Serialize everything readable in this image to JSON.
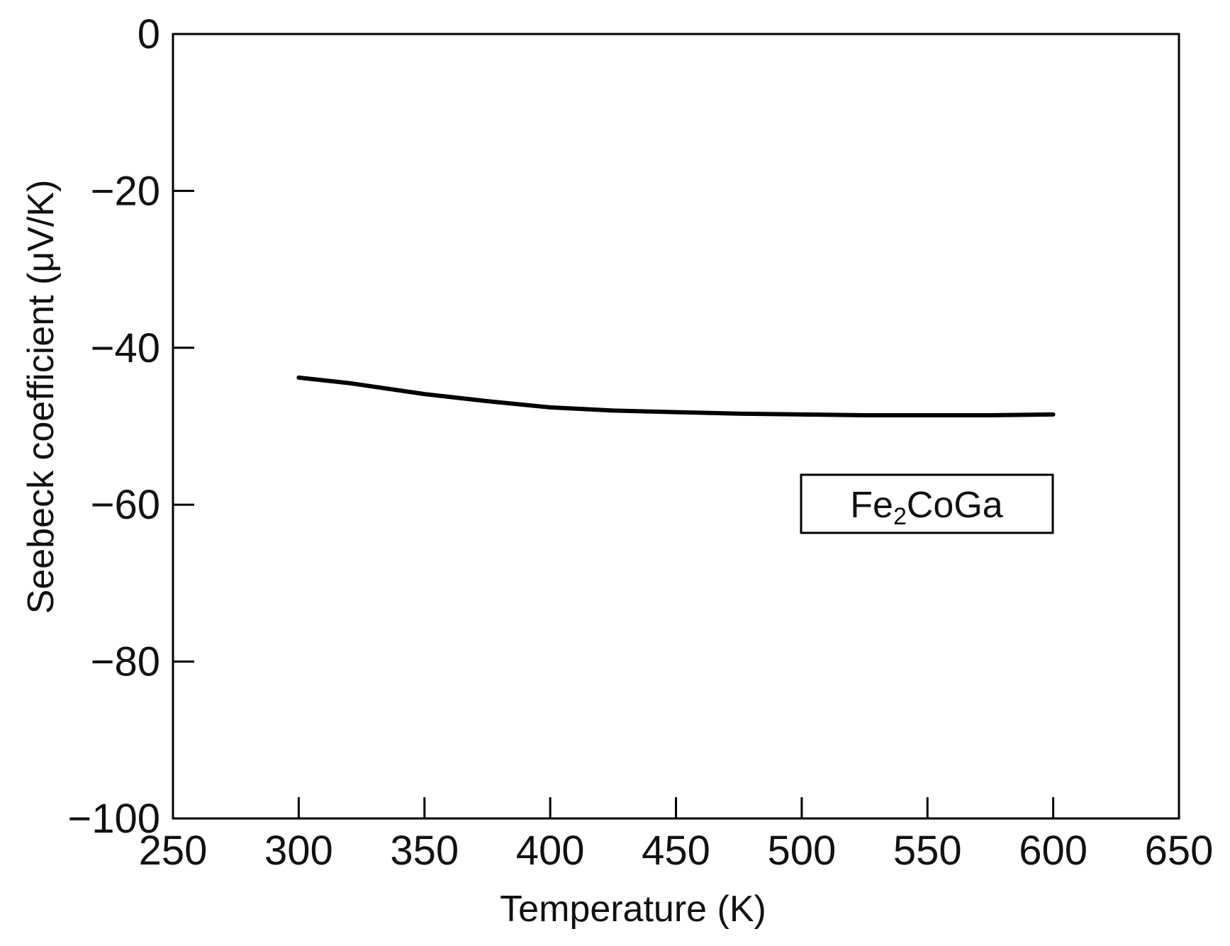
{
  "chart_data": {
    "type": "line",
    "xlabel": "Temperature (K)",
    "ylabel": "Seebeck coefficient (μV/K)",
    "xlim": [
      250,
      650
    ],
    "ylim": [
      -100,
      0
    ],
    "x_ticks": [
      250,
      300,
      350,
      400,
      450,
      500,
      550,
      600,
      650
    ],
    "y_ticks": [
      0,
      -20,
      -40,
      -60,
      -80,
      -100
    ],
    "x_tick_labels": [
      "250",
      "300",
      "350",
      "400",
      "450",
      "500",
      "550",
      "600",
      "650"
    ],
    "y_tick_labels": [
      "0",
      "-20",
      "-40",
      "-60",
      "-80",
      "-100"
    ],
    "grid": false,
    "legend_position": "right",
    "legend": {
      "base": "Fe",
      "subscript": "2",
      "rest": "CoGa"
    },
    "series": [
      {
        "name": "Fe2CoGa",
        "color": "#000000",
        "x": [
          300,
          320,
          350,
          375,
          400,
          425,
          450,
          475,
          500,
          525,
          550,
          575,
          600
        ],
        "y": [
          -43.8,
          -44.5,
          -45.9,
          -46.8,
          -47.6,
          -48.0,
          -48.2,
          -48.4,
          -48.5,
          -48.6,
          -48.6,
          -48.6,
          -48.5
        ]
      }
    ]
  }
}
